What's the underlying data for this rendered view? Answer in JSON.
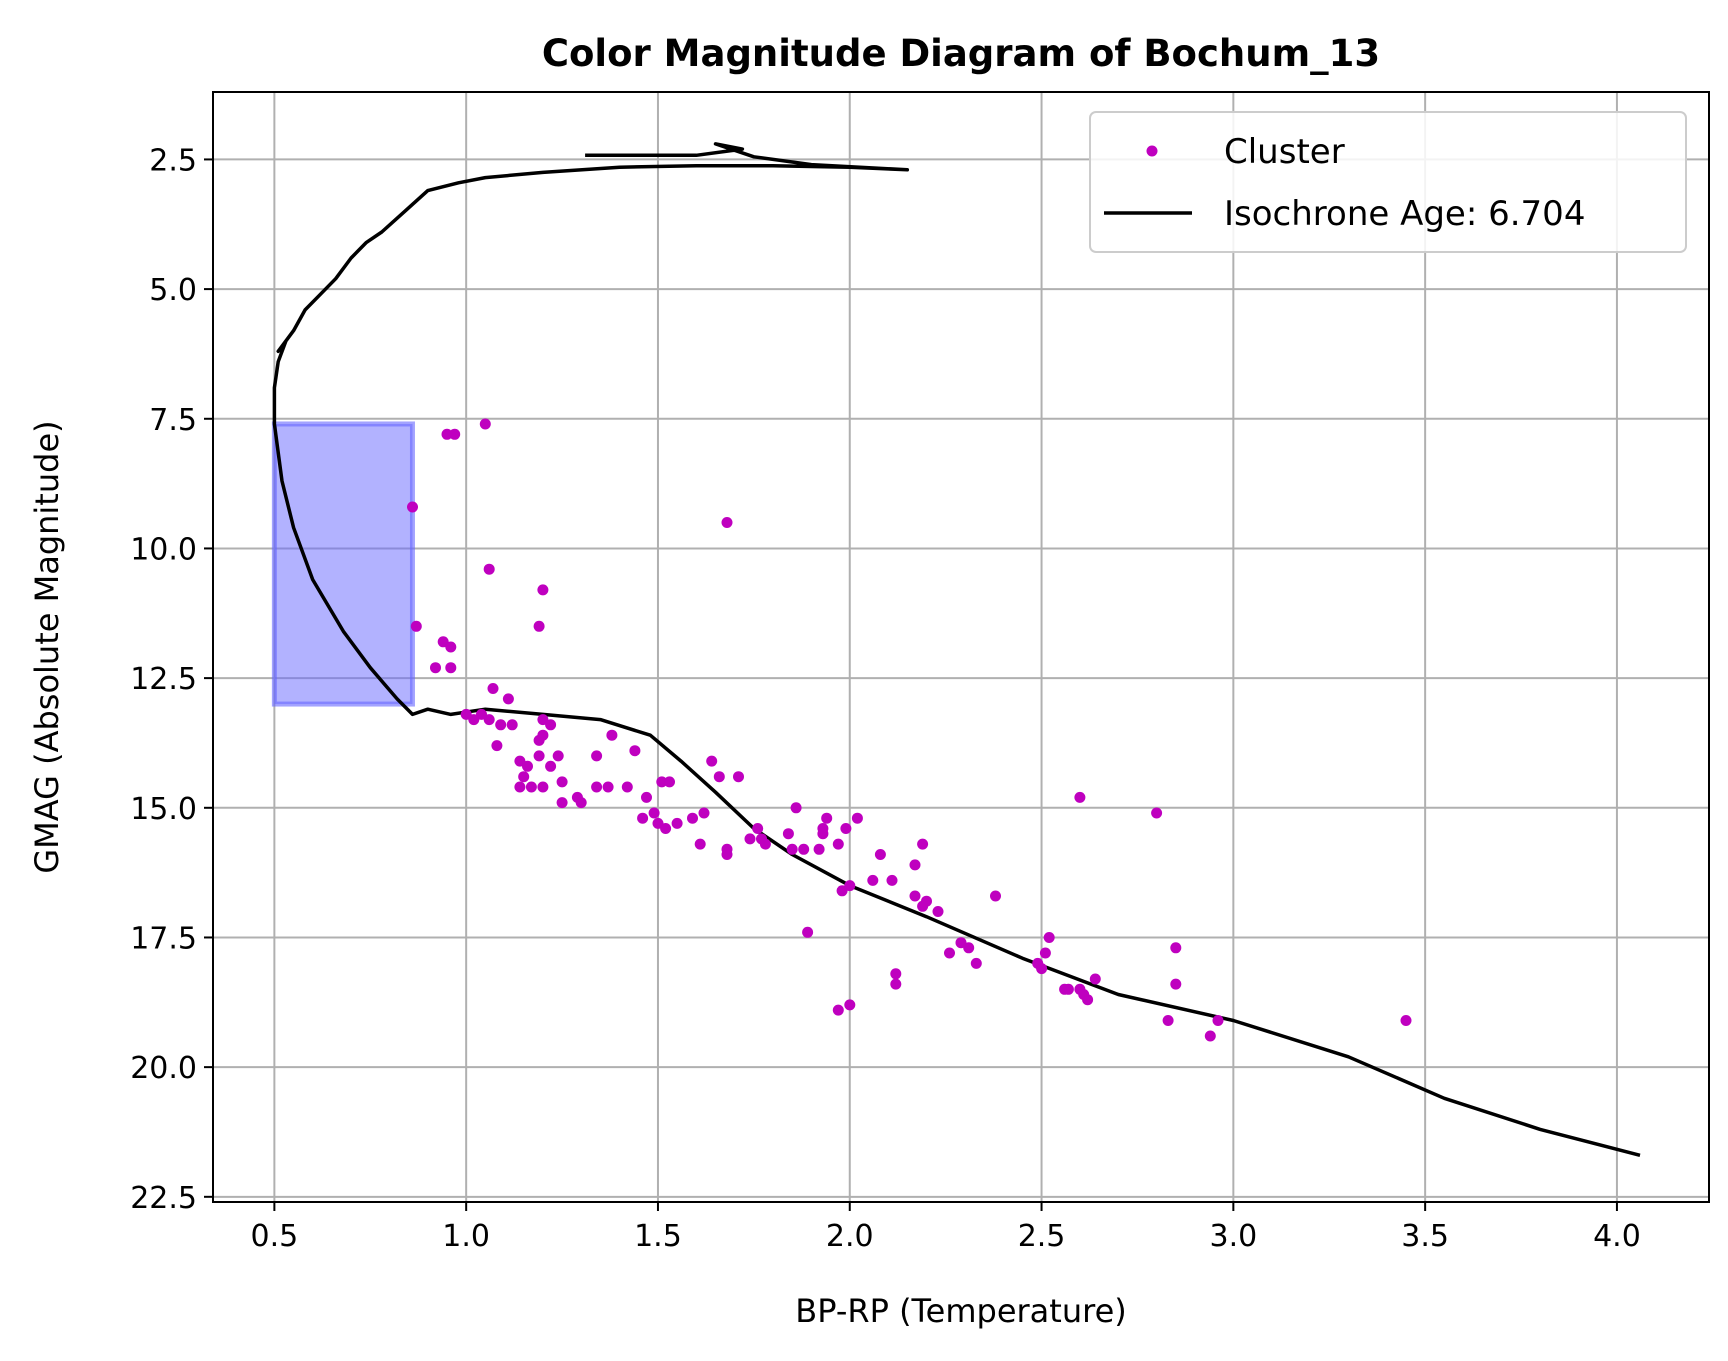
{
  "chart_data": {
    "type": "scatter",
    "title": "Color Magnitude Diagram of Bochum_13",
    "xlabel": "BP-RP (Temperature)",
    "ylabel": "GMAG (Absolute Magnitude)",
    "xlim": [
      0.34,
      4.24
    ],
    "ylim": [
      22.6,
      1.2
    ],
    "y_inverted": true,
    "grid": true,
    "x_ticks": [
      0.5,
      1.0,
      1.5,
      2.0,
      2.5,
      3.0,
      3.5,
      4.0
    ],
    "x_tick_labels": [
      "0.5",
      "1.0",
      "1.5",
      "2.0",
      "2.5",
      "3.0",
      "3.5",
      "4.0"
    ],
    "y_ticks": [
      2.5,
      5.0,
      7.5,
      10.0,
      12.5,
      15.0,
      17.5,
      20.0,
      22.5
    ],
    "y_tick_labels": [
      "2.5",
      "5.0",
      "7.5",
      "10.0",
      "12.5",
      "15.0",
      "17.5",
      "20.0",
      "22.5"
    ],
    "legend_position": "top-right",
    "highlight_region": {
      "x": [
        0.5,
        0.86
      ],
      "y": [
        7.6,
        13.0
      ],
      "color": "#6666ff"
    },
    "series": [
      {
        "name": "Cluster",
        "kind": "scatter",
        "color": "#bf00bf",
        "points": [
          [
            0.95,
            7.8
          ],
          [
            0.97,
            7.8
          ],
          [
            1.05,
            7.6
          ],
          [
            0.86,
            9.2
          ],
          [
            1.68,
            9.5
          ],
          [
            1.06,
            10.4
          ],
          [
            1.2,
            10.8
          ],
          [
            0.87,
            11.5
          ],
          [
            1.19,
            11.5
          ],
          [
            0.94,
            11.8
          ],
          [
            0.96,
            11.9
          ],
          [
            0.92,
            12.3
          ],
          [
            0.96,
            12.3
          ],
          [
            1.07,
            12.7
          ],
          [
            1.11,
            12.9
          ],
          [
            1.0,
            13.2
          ],
          [
            1.02,
            13.3
          ],
          [
            1.04,
            13.2
          ],
          [
            1.06,
            13.3
          ],
          [
            1.09,
            13.4
          ],
          [
            1.12,
            13.4
          ],
          [
            1.2,
            13.3
          ],
          [
            1.22,
            13.4
          ],
          [
            1.19,
            13.7
          ],
          [
            1.2,
            13.6
          ],
          [
            1.08,
            13.8
          ],
          [
            1.19,
            14.0
          ],
          [
            1.14,
            14.1
          ],
          [
            1.16,
            14.2
          ],
          [
            1.22,
            14.2
          ],
          [
            1.24,
            14.0
          ],
          [
            1.15,
            14.4
          ],
          [
            1.14,
            14.6
          ],
          [
            1.17,
            14.6
          ],
          [
            1.2,
            14.6
          ],
          [
            1.25,
            14.5
          ],
          [
            1.25,
            14.9
          ],
          [
            1.29,
            14.8
          ],
          [
            1.3,
            14.9
          ],
          [
            1.34,
            14.6
          ],
          [
            1.37,
            14.6
          ],
          [
            1.42,
            14.6
          ],
          [
            1.34,
            14.0
          ],
          [
            1.38,
            13.6
          ],
          [
            1.44,
            13.9
          ],
          [
            1.47,
            14.8
          ],
          [
            1.46,
            15.2
          ],
          [
            1.49,
            15.1
          ],
          [
            1.5,
            15.3
          ],
          [
            1.52,
            15.4
          ],
          [
            1.51,
            14.5
          ],
          [
            1.53,
            14.5
          ],
          [
            1.55,
            15.3
          ],
          [
            1.59,
            15.2
          ],
          [
            1.62,
            15.1
          ],
          [
            1.61,
            15.7
          ],
          [
            1.64,
            14.1
          ],
          [
            1.66,
            14.4
          ],
          [
            1.71,
            14.4
          ],
          [
            1.68,
            15.8
          ],
          [
            1.68,
            15.9
          ],
          [
            1.74,
            15.6
          ],
          [
            1.76,
            15.4
          ],
          [
            1.77,
            15.6
          ],
          [
            1.78,
            15.7
          ],
          [
            1.84,
            15.5
          ],
          [
            1.86,
            15.0
          ],
          [
            1.85,
            15.8
          ],
          [
            1.88,
            15.8
          ],
          [
            1.92,
            15.8
          ],
          [
            1.93,
            15.5
          ],
          [
            1.93,
            15.4
          ],
          [
            1.94,
            15.2
          ],
          [
            1.97,
            15.7
          ],
          [
            1.99,
            15.4
          ],
          [
            2.02,
            15.2
          ],
          [
            1.98,
            16.6
          ],
          [
            2.0,
            16.5
          ],
          [
            2.06,
            16.4
          ],
          [
            2.08,
            15.9
          ],
          [
            2.11,
            16.4
          ],
          [
            2.17,
            16.1
          ],
          [
            2.17,
            16.7
          ],
          [
            2.19,
            15.7
          ],
          [
            2.19,
            16.9
          ],
          [
            2.2,
            16.8
          ],
          [
            2.23,
            17.0
          ],
          [
            2.26,
            17.8
          ],
          [
            2.29,
            17.6
          ],
          [
            2.31,
            17.7
          ],
          [
            2.33,
            18.0
          ],
          [
            2.38,
            16.7
          ],
          [
            1.89,
            17.4
          ],
          [
            1.97,
            18.9
          ],
          [
            2.0,
            18.8
          ],
          [
            2.12,
            18.2
          ],
          [
            2.12,
            18.4
          ],
          [
            2.49,
            18.0
          ],
          [
            2.5,
            18.1
          ],
          [
            2.51,
            17.8
          ],
          [
            2.52,
            17.5
          ],
          [
            2.56,
            18.5
          ],
          [
            2.57,
            18.5
          ],
          [
            2.6,
            18.5
          ],
          [
            2.61,
            18.6
          ],
          [
            2.62,
            18.7
          ],
          [
            2.64,
            18.3
          ],
          [
            2.6,
            14.8
          ],
          [
            2.8,
            15.1
          ],
          [
            2.85,
            17.7
          ],
          [
            2.85,
            18.4
          ],
          [
            2.83,
            19.1
          ],
          [
            2.94,
            19.4
          ],
          [
            2.96,
            19.1
          ],
          [
            3.45,
            19.1
          ]
        ]
      },
      {
        "name": "Isochrone Age: 6.704",
        "kind": "line",
        "color": "#000000",
        "points": [
          [
            4.06,
            21.7
          ],
          [
            3.8,
            21.2
          ],
          [
            3.55,
            20.6
          ],
          [
            3.3,
            19.8
          ],
          [
            3.0,
            19.1
          ],
          [
            2.7,
            18.6
          ],
          [
            2.45,
            17.9
          ],
          [
            2.2,
            17.1
          ],
          [
            2.0,
            16.5
          ],
          [
            1.85,
            15.9
          ],
          [
            1.75,
            15.4
          ],
          [
            1.65,
            14.7
          ],
          [
            1.56,
            14.1
          ],
          [
            1.48,
            13.6
          ],
          [
            1.35,
            13.3
          ],
          [
            1.2,
            13.2
          ],
          [
            1.05,
            13.1
          ],
          [
            0.96,
            13.2
          ],
          [
            0.9,
            13.1
          ],
          [
            0.86,
            13.2
          ],
          [
            0.82,
            12.9
          ],
          [
            0.75,
            12.3
          ],
          [
            0.68,
            11.6
          ],
          [
            0.6,
            10.6
          ],
          [
            0.55,
            9.6
          ],
          [
            0.52,
            8.7
          ],
          [
            0.5,
            7.6
          ],
          [
            0.5,
            6.9
          ],
          [
            0.51,
            6.4
          ],
          [
            0.53,
            6.0
          ],
          [
            0.51,
            6.2
          ],
          [
            0.55,
            5.8
          ],
          [
            0.58,
            5.4
          ],
          [
            0.62,
            5.1
          ],
          [
            0.66,
            4.8
          ],
          [
            0.7,
            4.4
          ],
          [
            0.74,
            4.1
          ],
          [
            0.78,
            3.9
          ],
          [
            0.84,
            3.5
          ],
          [
            0.9,
            3.1
          ],
          [
            0.98,
            2.95
          ],
          [
            1.05,
            2.85
          ],
          [
            1.2,
            2.75
          ],
          [
            1.4,
            2.65
          ],
          [
            1.6,
            2.62
          ],
          [
            1.8,
            2.62
          ],
          [
            2.0,
            2.65
          ],
          [
            2.15,
            2.7
          ],
          [
            1.9,
            2.6
          ],
          [
            1.75,
            2.45
          ],
          [
            1.65,
            2.2
          ],
          [
            1.72,
            2.3
          ],
          [
            1.6,
            2.42
          ],
          [
            1.31,
            2.42
          ]
        ]
      }
    ]
  }
}
